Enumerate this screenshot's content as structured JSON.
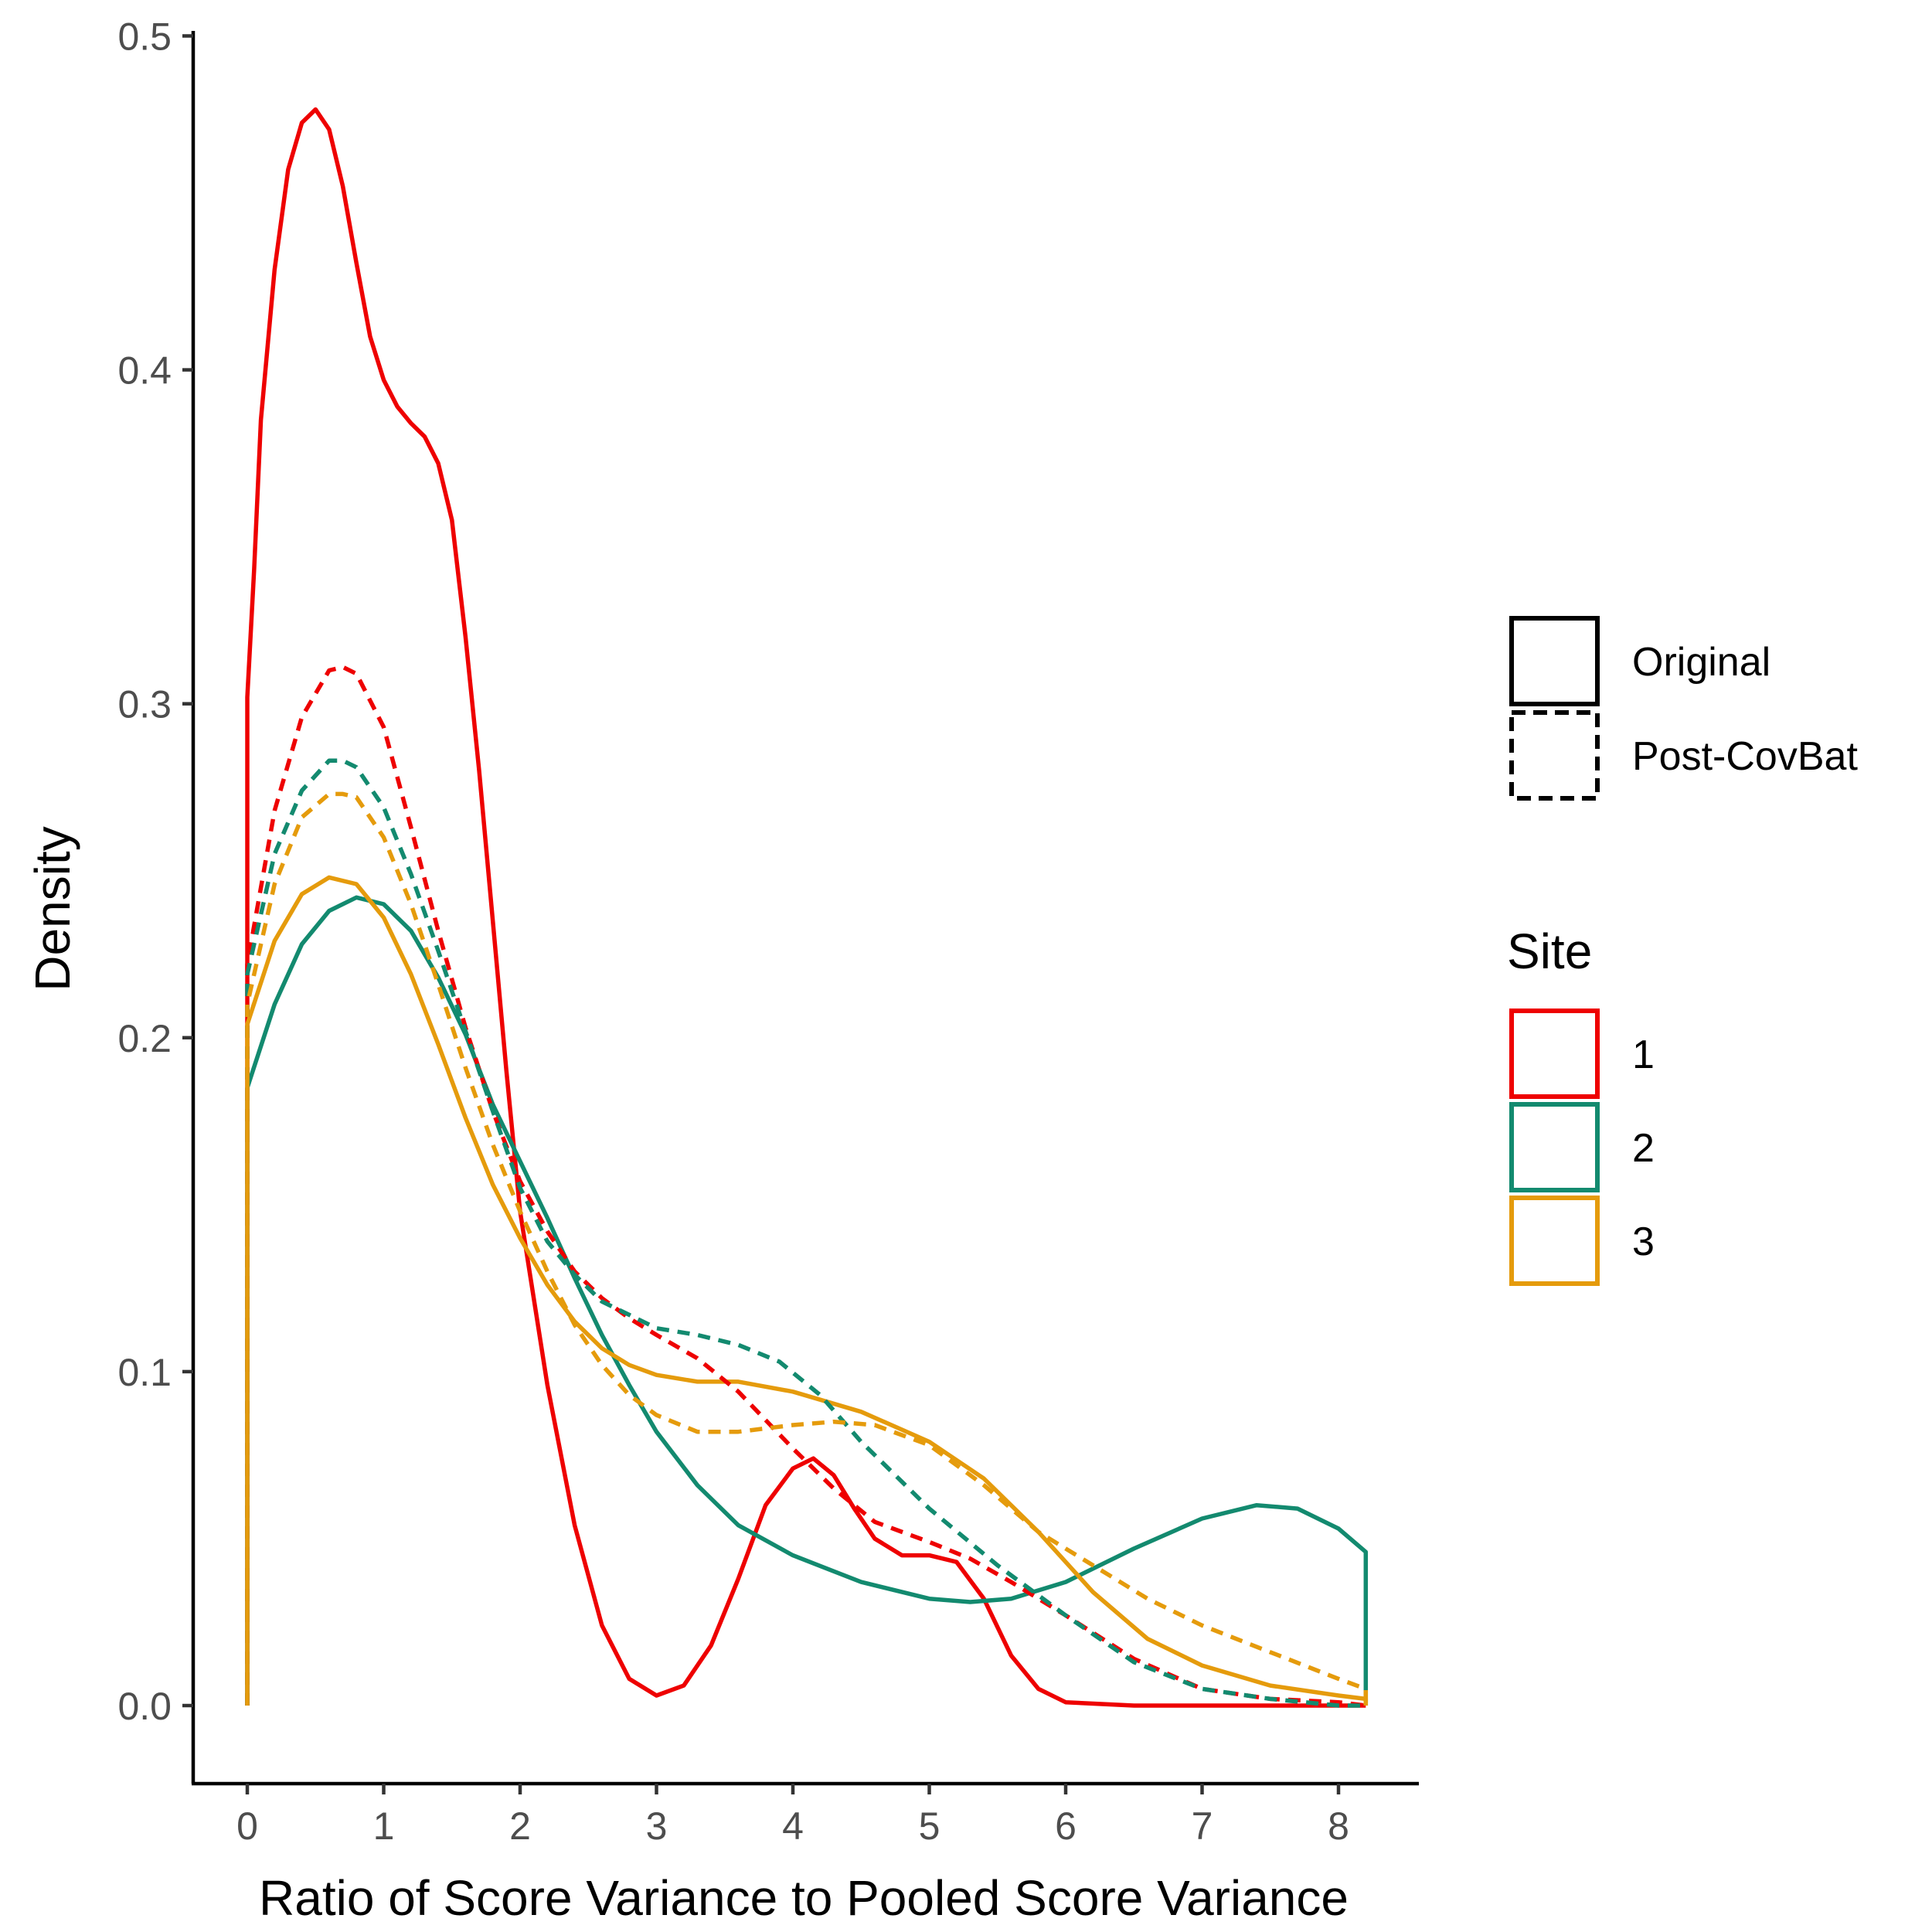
{
  "chart_data": {
    "type": "line",
    "title": "",
    "xlabel": "Ratio of Score Variance to Pooled Score Variance",
    "ylabel": "Density",
    "xlim": [
      -0.4,
      8.6
    ],
    "ylim": [
      -0.024,
      0.505
    ],
    "x_ticks": [
      "0",
      "1",
      "2",
      "3",
      "4",
      "5",
      "6",
      "7",
      "8"
    ],
    "y_ticks": [
      "0.0",
      "0.1",
      "0.2",
      "0.3",
      "0.4",
      "0.5"
    ],
    "grid": false,
    "legend_position": "right",
    "legend_linetype": {
      "title": "",
      "items": [
        {
          "label": "Original",
          "dash": "solid"
        },
        {
          "label": "Post-CovBat",
          "dash": "dashed"
        }
      ]
    },
    "legend_site": {
      "title": "Site",
      "items": [
        {
          "label": "1",
          "color": "#EE0000"
        },
        {
          "label": "2",
          "color": "#138A6F"
        },
        {
          "label": "3",
          "color": "#E59B0C"
        }
      ]
    },
    "series": [
      {
        "site": "1",
        "linetype": "Original",
        "color": "#EE0000",
        "dashed": false,
        "points": [
          [
            0,
            0.302
          ],
          [
            0.05,
            0.34
          ],
          [
            0.1,
            0.385
          ],
          [
            0.2,
            0.43
          ],
          [
            0.3,
            0.46
          ],
          [
            0.4,
            0.474
          ],
          [
            0.5,
            0.478
          ],
          [
            0.6,
            0.472
          ],
          [
            0.7,
            0.455
          ],
          [
            0.8,
            0.432
          ],
          [
            0.9,
            0.41
          ],
          [
            1.0,
            0.397
          ],
          [
            1.1,
            0.389
          ],
          [
            1.2,
            0.384
          ],
          [
            1.3,
            0.38
          ],
          [
            1.4,
            0.372
          ],
          [
            1.5,
            0.355
          ],
          [
            1.6,
            0.32
          ],
          [
            1.7,
            0.28
          ],
          [
            1.8,
            0.235
          ],
          [
            1.9,
            0.19
          ],
          [
            2.0,
            0.148
          ],
          [
            2.2,
            0.096
          ],
          [
            2.4,
            0.054
          ],
          [
            2.6,
            0.024
          ],
          [
            2.8,
            0.008
          ],
          [
            3.0,
            0.003
          ],
          [
            3.2,
            0.006
          ],
          [
            3.4,
            0.018
          ],
          [
            3.6,
            0.038
          ],
          [
            3.8,
            0.06
          ],
          [
            4.0,
            0.071
          ],
          [
            4.15,
            0.074
          ],
          [
            4.3,
            0.069
          ],
          [
            4.45,
            0.059
          ],
          [
            4.6,
            0.05
          ],
          [
            4.8,
            0.045
          ],
          [
            5.0,
            0.045
          ],
          [
            5.2,
            0.043
          ],
          [
            5.4,
            0.032
          ],
          [
            5.6,
            0.015
          ],
          [
            5.8,
            0.005
          ],
          [
            6.0,
            0.001
          ],
          [
            6.5,
            0.0
          ],
          [
            8.2,
            0.0
          ]
        ]
      },
      {
        "site": "2",
        "linetype": "Original",
        "color": "#138A6F",
        "dashed": false,
        "points": [
          [
            0,
            0.185
          ],
          [
            0.2,
            0.21
          ],
          [
            0.4,
            0.228
          ],
          [
            0.6,
            0.238
          ],
          [
            0.8,
            0.242
          ],
          [
            1.0,
            0.24
          ],
          [
            1.2,
            0.232
          ],
          [
            1.4,
            0.218
          ],
          [
            1.6,
            0.201
          ],
          [
            1.8,
            0.18
          ],
          [
            2.0,
            0.163
          ],
          [
            2.2,
            0.146
          ],
          [
            2.4,
            0.128
          ],
          [
            2.6,
            0.111
          ],
          [
            2.8,
            0.096
          ],
          [
            3.0,
            0.082
          ],
          [
            3.3,
            0.066
          ],
          [
            3.6,
            0.054
          ],
          [
            4.0,
            0.045
          ],
          [
            4.5,
            0.037
          ],
          [
            5.0,
            0.032
          ],
          [
            5.3,
            0.031
          ],
          [
            5.6,
            0.032
          ],
          [
            6.0,
            0.037
          ],
          [
            6.5,
            0.047
          ],
          [
            7.0,
            0.056
          ],
          [
            7.4,
            0.06
          ],
          [
            7.7,
            0.059
          ],
          [
            8.0,
            0.053
          ],
          [
            8.2,
            0.046
          ]
        ]
      },
      {
        "site": "3",
        "linetype": "Original",
        "color": "#E59B0C",
        "dashed": false,
        "points": [
          [
            0,
            0.204
          ],
          [
            0.2,
            0.229
          ],
          [
            0.4,
            0.243
          ],
          [
            0.6,
            0.248
          ],
          [
            0.8,
            0.246
          ],
          [
            1.0,
            0.236
          ],
          [
            1.2,
            0.219
          ],
          [
            1.4,
            0.198
          ],
          [
            1.6,
            0.176
          ],
          [
            1.8,
            0.156
          ],
          [
            2.0,
            0.14
          ],
          [
            2.2,
            0.126
          ],
          [
            2.4,
            0.115
          ],
          [
            2.6,
            0.107
          ],
          [
            2.8,
            0.102
          ],
          [
            3.0,
            0.099
          ],
          [
            3.3,
            0.097
          ],
          [
            3.6,
            0.097
          ],
          [
            4.0,
            0.094
          ],
          [
            4.5,
            0.088
          ],
          [
            5.0,
            0.079
          ],
          [
            5.4,
            0.068
          ],
          [
            5.8,
            0.052
          ],
          [
            6.2,
            0.034
          ],
          [
            6.6,
            0.02
          ],
          [
            7.0,
            0.012
          ],
          [
            7.5,
            0.006
          ],
          [
            8.0,
            0.003
          ],
          [
            8.2,
            0.002
          ]
        ]
      },
      {
        "site": "1",
        "linetype": "Post-CovBat",
        "color": "#EE0000",
        "dashed": true,
        "points": [
          [
            0,
            0.222
          ],
          [
            0.2,
            0.268
          ],
          [
            0.4,
            0.296
          ],
          [
            0.6,
            0.31
          ],
          [
            0.7,
            0.311
          ],
          [
            0.8,
            0.309
          ],
          [
            1.0,
            0.293
          ],
          [
            1.2,
            0.263
          ],
          [
            1.4,
            0.232
          ],
          [
            1.6,
            0.203
          ],
          [
            1.8,
            0.178
          ],
          [
            2.0,
            0.157
          ],
          [
            2.2,
            0.142
          ],
          [
            2.4,
            0.13
          ],
          [
            2.6,
            0.122
          ],
          [
            2.8,
            0.116
          ],
          [
            3.0,
            0.111
          ],
          [
            3.3,
            0.104
          ],
          [
            3.6,
            0.094
          ],
          [
            4.0,
            0.077
          ],
          [
            4.3,
            0.065
          ],
          [
            4.6,
            0.055
          ],
          [
            5.0,
            0.049
          ],
          [
            5.3,
            0.044
          ],
          [
            5.6,
            0.037
          ],
          [
            6.0,
            0.027
          ],
          [
            6.5,
            0.014
          ],
          [
            7.0,
            0.005
          ],
          [
            7.5,
            0.002
          ],
          [
            8.0,
            0.001
          ],
          [
            8.2,
            0.0
          ]
        ]
      },
      {
        "site": "2",
        "linetype": "Post-CovBat",
        "color": "#138A6F",
        "dashed": true,
        "points": [
          [
            0,
            0.219
          ],
          [
            0.2,
            0.255
          ],
          [
            0.4,
            0.274
          ],
          [
            0.6,
            0.283
          ],
          [
            0.7,
            0.283
          ],
          [
            0.8,
            0.281
          ],
          [
            1.0,
            0.269
          ],
          [
            1.2,
            0.249
          ],
          [
            1.4,
            0.226
          ],
          [
            1.6,
            0.202
          ],
          [
            1.8,
            0.178
          ],
          [
            2.0,
            0.155
          ],
          [
            2.2,
            0.139
          ],
          [
            2.4,
            0.129
          ],
          [
            2.6,
            0.121
          ],
          [
            2.8,
            0.117
          ],
          [
            3.0,
            0.113
          ],
          [
            3.3,
            0.111
          ],
          [
            3.6,
            0.108
          ],
          [
            3.9,
            0.103
          ],
          [
            4.2,
            0.093
          ],
          [
            4.5,
            0.079
          ],
          [
            5.0,
            0.059
          ],
          [
            5.5,
            0.042
          ],
          [
            6.0,
            0.027
          ],
          [
            6.5,
            0.013
          ],
          [
            7.0,
            0.005
          ],
          [
            7.5,
            0.002
          ],
          [
            8.0,
            0.0
          ],
          [
            8.2,
            0.0
          ]
        ]
      },
      {
        "site": "3",
        "linetype": "Post-CovBat",
        "color": "#E59B0C",
        "dashed": true,
        "points": [
          [
            0,
            0.21
          ],
          [
            0.2,
            0.246
          ],
          [
            0.4,
            0.266
          ],
          [
            0.6,
            0.273
          ],
          [
            0.7,
            0.273
          ],
          [
            0.8,
            0.272
          ],
          [
            1.0,
            0.26
          ],
          [
            1.2,
            0.24
          ],
          [
            1.4,
            0.216
          ],
          [
            1.6,
            0.191
          ],
          [
            1.8,
            0.168
          ],
          [
            2.0,
            0.148
          ],
          [
            2.2,
            0.13
          ],
          [
            2.4,
            0.114
          ],
          [
            2.6,
            0.102
          ],
          [
            2.8,
            0.093
          ],
          [
            3.0,
            0.087
          ],
          [
            3.3,
            0.082
          ],
          [
            3.6,
            0.082
          ],
          [
            4.0,
            0.084
          ],
          [
            4.3,
            0.085
          ],
          [
            4.6,
            0.084
          ],
          [
            5.0,
            0.078
          ],
          [
            5.4,
            0.066
          ],
          [
            5.8,
            0.052
          ],
          [
            6.2,
            0.042
          ],
          [
            6.6,
            0.032
          ],
          [
            7.0,
            0.024
          ],
          [
            7.5,
            0.016
          ],
          [
            8.0,
            0.008
          ],
          [
            8.2,
            0.005
          ]
        ]
      }
    ]
  }
}
